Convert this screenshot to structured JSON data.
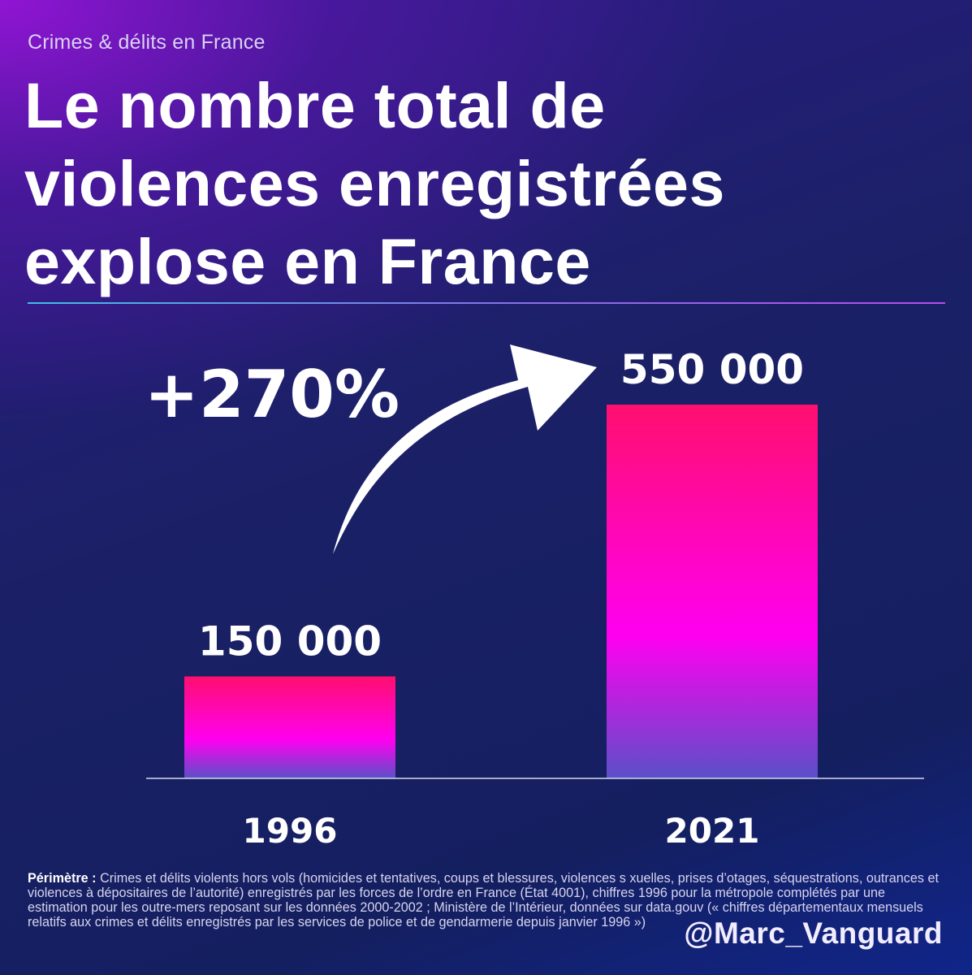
{
  "header": {
    "subtitle": "Crimes & délits en France",
    "title_lines": [
      "Le nombre total de",
      "violences enregistrées",
      "explose en France"
    ]
  },
  "chart_data": {
    "type": "bar",
    "categories": [
      "1996",
      "2021"
    ],
    "values": [
      150000,
      550000
    ],
    "value_labels": [
      "150 000",
      "550 000"
    ],
    "title": "Le nombre total de violences enregistrées explose en France",
    "xlabel": "",
    "ylabel": "",
    "ylim": [
      0,
      550000
    ],
    "grid": false,
    "annotation": "+270%",
    "colors": {
      "bar_top": "#ff0f6f",
      "bar_mid": "#ff00f0",
      "bar_bottom": "#5a50c8"
    }
  },
  "footnote": {
    "label": "Périmètre :",
    "text": " Crimes et délits violents hors vols (homicides et tentatives, coups et blessures, violences s xuelles, prises d’otages, séquestrations, outrances et violences à dépositaires de l’autorité) enregistrés par les forces de l’ordre en France (État 4001), chiffres 1996 pour la métropole complétés par une estimation pour les outre-mers reposant sur les données 2000-2002 ; Ministère de l’Intérieur, données sur data.gouv (« chiffres départementaux mensuels relatifs aux crimes et délits enregistrés par les services de police et de gendarmerie depuis janvier 1996 »)"
  },
  "handle": "@Marc_Vanguard",
  "icons": {
    "arrow": "curved-arrow-icon"
  }
}
